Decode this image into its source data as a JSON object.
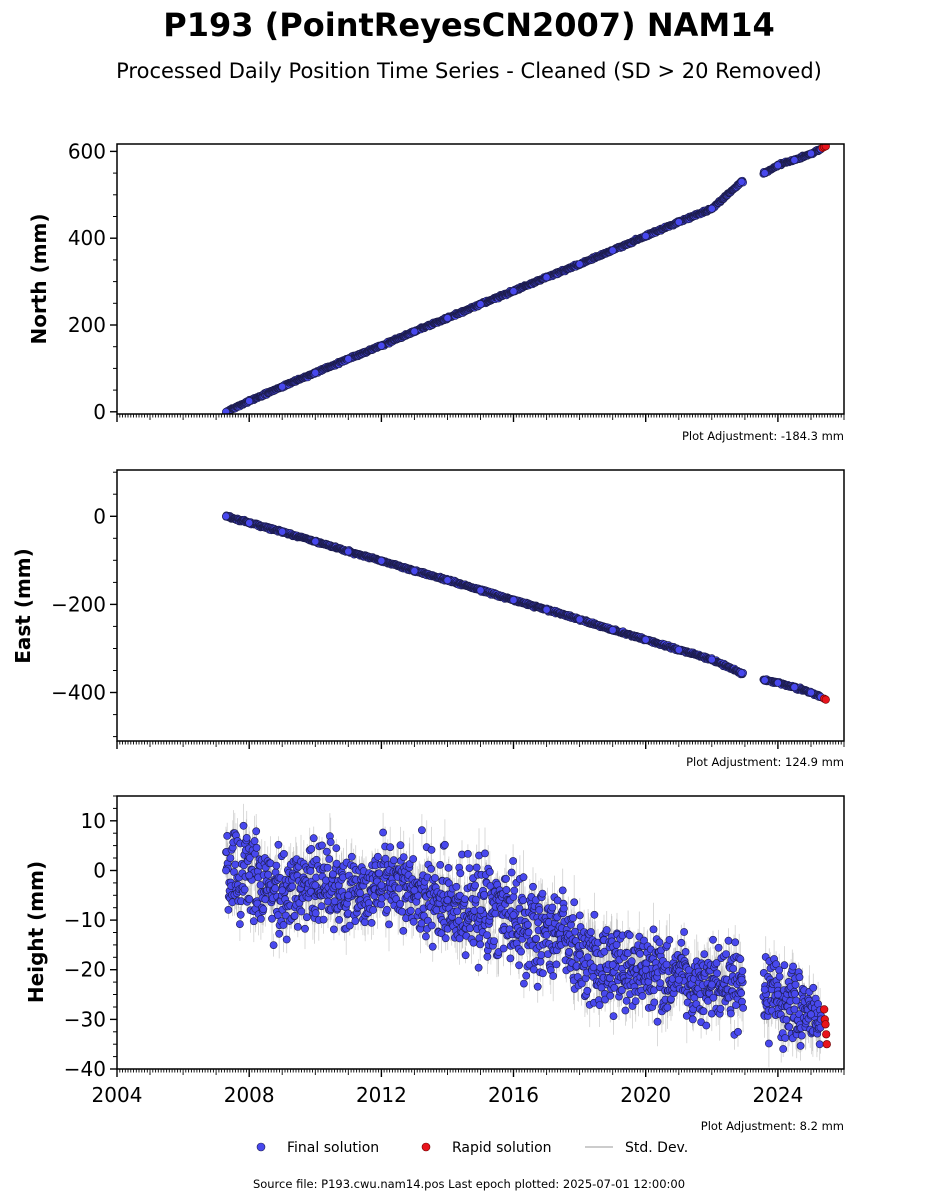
{
  "title": "P193 (PointReyesCN2007) NAM14",
  "subtitle": "Processed Daily Position Time Series - Cleaned (SD > 20 Removed)",
  "colors": {
    "final": "#4848ee",
    "final_dense": "#1c1c4a",
    "rapid": "#e8141c",
    "stddev": "#9a9a9a",
    "axis": "#000000"
  },
  "legend": {
    "placement": "bottom-center",
    "final": "Final solution",
    "rapid": "Rapid solution",
    "stddev": "Std. Dev."
  },
  "footer": "Source file: P193.cwu.nam14.pos  Last epoch plotted: 2025-07-01 12:00:00",
  "chart_data": [
    {
      "type": "scatter",
      "ylabel": "North (mm)",
      "adjustment": "Plot Adjustment: -184.3 mm",
      "xlim": [
        2004.0,
        2026.0
      ],
      "ylim": [
        -5,
        617
      ],
      "yticks": [
        0,
        200,
        400,
        600
      ],
      "ytick_labels": [
        "0",
        "200",
        "400",
        "600"
      ],
      "xticks": [
        2004,
        2008,
        2012,
        2016,
        2020,
        2024
      ],
      "grid": false,
      "series": [
        {
          "name": "Final solution",
          "x": [
            2007.3,
            2008.0,
            2009.0,
            2010.0,
            2011.0,
            2012.0,
            2013.0,
            2014.0,
            2015.0,
            2016.0,
            2017.0,
            2018.0,
            2019.0,
            2020.0,
            2021.0,
            2022.0,
            2022.9,
            2023.6,
            2024.0,
            2024.5,
            2025.0,
            2025.3
          ],
          "y": [
            0,
            25,
            58,
            90,
            122,
            152,
            185,
            216,
            248,
            278,
            310,
            340,
            372,
            405,
            437,
            468,
            530,
            550,
            568,
            580,
            595,
            605
          ]
        },
        {
          "name": "Rapid solution",
          "x": [
            2025.35,
            2025.4,
            2025.45
          ],
          "y": [
            608,
            610,
            612
          ]
        }
      ]
    },
    {
      "type": "scatter",
      "ylabel": "East (mm)",
      "adjustment": "Plot Adjustment: 124.9 mm",
      "xlim": [
        2004.0,
        2026.0
      ],
      "ylim": [
        -510,
        105
      ],
      "yticks": [
        0,
        -200,
        -400
      ],
      "ytick_labels": [
        "0",
        "−200",
        "−400"
      ],
      "xticks": [
        2004,
        2008,
        2012,
        2016,
        2020,
        2024
      ],
      "grid": false,
      "series": [
        {
          "name": "Final solution",
          "x": [
            2007.3,
            2008.0,
            2009.0,
            2010.0,
            2011.0,
            2012.0,
            2013.0,
            2014.0,
            2015.0,
            2016.0,
            2017.0,
            2018.0,
            2019.0,
            2020.0,
            2021.0,
            2022.0,
            2022.9,
            2023.6,
            2024.0,
            2024.5,
            2025.0,
            2025.3
          ],
          "y": [
            0,
            -15,
            -35,
            -57,
            -80,
            -101,
            -124,
            -145,
            -168,
            -190,
            -212,
            -234,
            -258,
            -280,
            -303,
            -325,
            -356,
            -372,
            -378,
            -388,
            -400,
            -410
          ]
        },
        {
          "name": "Rapid solution",
          "x": [
            2025.4,
            2025.45
          ],
          "y": [
            -414,
            -416
          ]
        }
      ]
    },
    {
      "type": "scatter",
      "ylabel": "Height (mm)",
      "adjustment": "Plot Adjustment: 8.2 mm",
      "xlim": [
        2004.0,
        2026.0
      ],
      "ylim": [
        -40,
        15
      ],
      "yticks": [
        10,
        0,
        -10,
        -20,
        -30,
        -40
      ],
      "ytick_labels": [
        "10",
        "0",
        "−10",
        "−20",
        "−30",
        "−40"
      ],
      "xticks": [
        2004,
        2008,
        2012,
        2016,
        2020,
        2024
      ],
      "xtick_labels": [
        "2004",
        "2008",
        "2012",
        "2016",
        "2020",
        "2024"
      ],
      "grid": false,
      "series": [
        {
          "name": "Final solution",
          "x": [
            2007.3,
            2008.0,
            2009.0,
            2010.0,
            2011.0,
            2012.0,
            2013.0,
            2014.0,
            2015.0,
            2016.0,
            2017.0,
            2018.0,
            2019.0,
            2020.0,
            2021.0,
            2022.0,
            2022.9,
            2023.6,
            2024.0,
            2024.5,
            2025.0,
            2025.3
          ],
          "y": [
            0,
            -1,
            -4,
            -3,
            -5,
            -3,
            -4,
            -6,
            -8,
            -9,
            -13,
            -17,
            -19,
            -20,
            -22,
            -23,
            -22,
            -24,
            -25,
            -28,
            -29,
            -30
          ],
          "scatter": [
            7.0,
            7.0,
            6.8,
            6.5,
            6.5,
            6.5,
            6.5,
            6.5,
            7.0,
            7.0,
            7.5,
            7.0,
            6.5,
            6.0,
            6.0,
            6.0,
            6.5,
            6.5,
            7.5,
            6.5,
            5.5,
            4.5
          ]
        },
        {
          "name": "Rapid solution",
          "x": [
            2025.4,
            2025.42,
            2025.44,
            2025.46,
            2025.48
          ],
          "y": [
            -28,
            -30,
            -31,
            -33,
            -35
          ]
        }
      ]
    }
  ]
}
